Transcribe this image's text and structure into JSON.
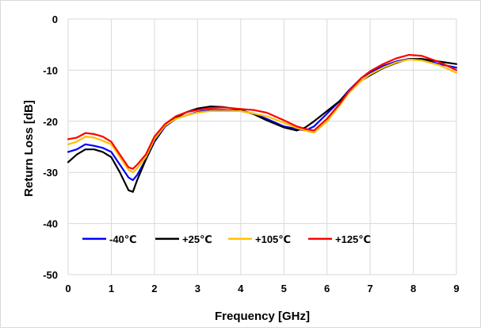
{
  "chart_data": {
    "type": "line",
    "title": "",
    "xlabel": "Frequency [GHz]",
    "ylabel": "Return Loss [dB]",
    "xlim": [
      0,
      9
    ],
    "ylim": [
      -50,
      0
    ],
    "x_ticks": [
      "0",
      "1",
      "2",
      "3",
      "4",
      "5",
      "6",
      "7",
      "8",
      "9"
    ],
    "y_ticks": [
      "0",
      "-10",
      "-20",
      "-30",
      "-40",
      "-50"
    ],
    "grid": "both",
    "legend_position": "inside-lower-left",
    "series": [
      {
        "name": "-40℃",
        "color": "#0000ff",
        "x": [
          0,
          0.2,
          0.4,
          0.6,
          0.8,
          1.0,
          1.2,
          1.4,
          1.5,
          1.6,
          1.8,
          2.0,
          2.25,
          2.5,
          2.75,
          3.0,
          3.3,
          3.6,
          4.0,
          4.3,
          4.6,
          5.0,
          5.3,
          5.5,
          5.7,
          6.0,
          6.3,
          6.5,
          6.8,
          7.0,
          7.3,
          7.6,
          7.9,
          8.2,
          8.6,
          9.0
        ],
        "y": [
          -26,
          -25.5,
          -24.5,
          -24.8,
          -25.2,
          -26,
          -28.5,
          -31,
          -31.5,
          -30.5,
          -27.5,
          -24,
          -21,
          -19.5,
          -18.8,
          -18.2,
          -17.8,
          -17.8,
          -18,
          -18.5,
          -19.5,
          -21,
          -21.5,
          -21.8,
          -21,
          -18.5,
          -16,
          -14,
          -11.5,
          -10.5,
          -9.2,
          -8.3,
          -7.8,
          -7.9,
          -8.8,
          -9.5
        ]
      },
      {
        "name": "+25℃",
        "color": "#000000",
        "x": [
          0,
          0.2,
          0.4,
          0.6,
          0.8,
          1.0,
          1.2,
          1.4,
          1.5,
          1.6,
          1.8,
          2.0,
          2.25,
          2.5,
          2.75,
          3.0,
          3.3,
          3.6,
          4.0,
          4.3,
          4.6,
          5.0,
          5.3,
          5.5,
          5.7,
          6.0,
          6.3,
          6.5,
          6.8,
          7.0,
          7.3,
          7.6,
          7.9,
          8.2,
          8.6,
          9.0
        ],
        "y": [
          -28,
          -26.5,
          -25.5,
          -25.5,
          -26,
          -27,
          -30,
          -33.5,
          -33.8,
          -31.5,
          -27.5,
          -23.8,
          -20.8,
          -19.3,
          -18.2,
          -17.5,
          -17.1,
          -17.2,
          -17.8,
          -18.6,
          -19.8,
          -21.2,
          -21.8,
          -21.2,
          -20,
          -18,
          -16,
          -14.2,
          -12,
          -11,
          -9.6,
          -8.6,
          -7.8,
          -7.8,
          -8.3,
          -8.8
        ]
      },
      {
        "name": "+105℃",
        "color": "#ffc000",
        "x": [
          0,
          0.2,
          0.4,
          0.6,
          0.8,
          1.0,
          1.2,
          1.4,
          1.5,
          1.6,
          1.8,
          2.0,
          2.25,
          2.5,
          2.75,
          3.0,
          3.3,
          3.6,
          4.0,
          4.3,
          4.6,
          5.0,
          5.3,
          5.5,
          5.7,
          6.0,
          6.3,
          6.5,
          6.8,
          7.0,
          7.3,
          7.6,
          7.9,
          8.2,
          8.6,
          9.0
        ],
        "y": [
          -24.5,
          -24,
          -23,
          -23.2,
          -23.8,
          -24.5,
          -27,
          -29.5,
          -30,
          -29.2,
          -27,
          -23.5,
          -20.8,
          -19.5,
          -18.8,
          -18.3,
          -18,
          -18,
          -18,
          -18.5,
          -19,
          -20.3,
          -21.3,
          -21.8,
          -22.2,
          -20,
          -16.8,
          -14.5,
          -12,
          -10.8,
          -9.5,
          -8.5,
          -7.9,
          -8.1,
          -9,
          -10.5
        ]
      },
      {
        "name": "+125℃",
        "color": "#ff0000",
        "x": [
          0,
          0.2,
          0.4,
          0.6,
          0.8,
          1.0,
          1.2,
          1.4,
          1.5,
          1.6,
          1.8,
          2.0,
          2.25,
          2.5,
          2.75,
          3.0,
          3.3,
          3.6,
          4.0,
          4.3,
          4.6,
          5.0,
          5.3,
          5.5,
          5.7,
          6.0,
          6.3,
          6.5,
          6.8,
          7.0,
          7.3,
          7.6,
          7.9,
          8.2,
          8.6,
          9.0
        ],
        "y": [
          -23.5,
          -23.2,
          -22.3,
          -22.5,
          -23,
          -24,
          -26.5,
          -29,
          -29.3,
          -28.5,
          -26.5,
          -23,
          -20.5,
          -19,
          -18.2,
          -17.8,
          -17.4,
          -17.3,
          -17.6,
          -17.8,
          -18.3,
          -19.8,
          -21,
          -21.5,
          -21.8,
          -19.5,
          -16.5,
          -14.2,
          -11.5,
          -10.2,
          -8.8,
          -7.7,
          -7,
          -7.2,
          -8.4,
          -10
        ]
      }
    ]
  }
}
